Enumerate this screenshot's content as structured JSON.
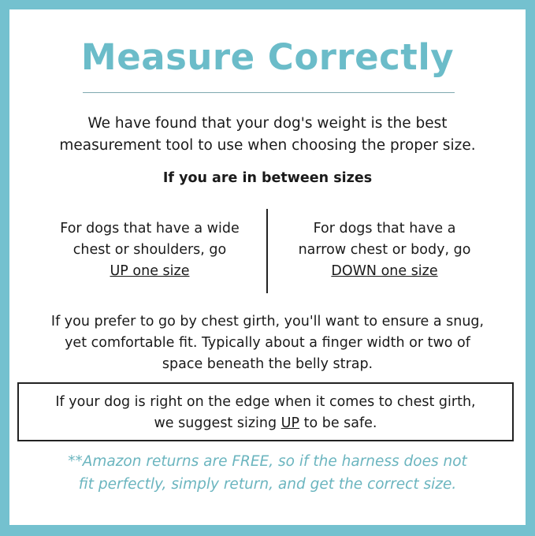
{
  "colors": {
    "border": "#74c1cf",
    "accent": "#6bbcc9",
    "note": "#6bb5bf"
  },
  "title": "Measure Correctly",
  "intro": [
    "We have found that your dog's weight is the best",
    "measurement tool to use when choosing the proper size."
  ],
  "subheading": "If you are in between sizes",
  "left": {
    "lines": [
      "For dogs that have a wide",
      "chest or shoulders, go"
    ],
    "emphasis": "UP one size"
  },
  "right": {
    "lines": [
      "For dogs that have a",
      "narrow chest or body, go"
    ],
    "emphasis": "DOWN one size"
  },
  "girth": [
    "If you prefer to go by chest girth, you'll want to ensure a snug,",
    "yet comfortable fit. Typically about a finger width or two of",
    "space beneath the belly strap."
  ],
  "box": {
    "line1": "If your dog is right on the edge when it comes to chest girth,",
    "pre": "we suggest sizing ",
    "emphasis": "UP",
    "post": " to be safe."
  },
  "note": [
    "**Amazon returns are FREE, so if the harness does not",
    "fit perfectly, simply return, and get the correct size."
  ]
}
